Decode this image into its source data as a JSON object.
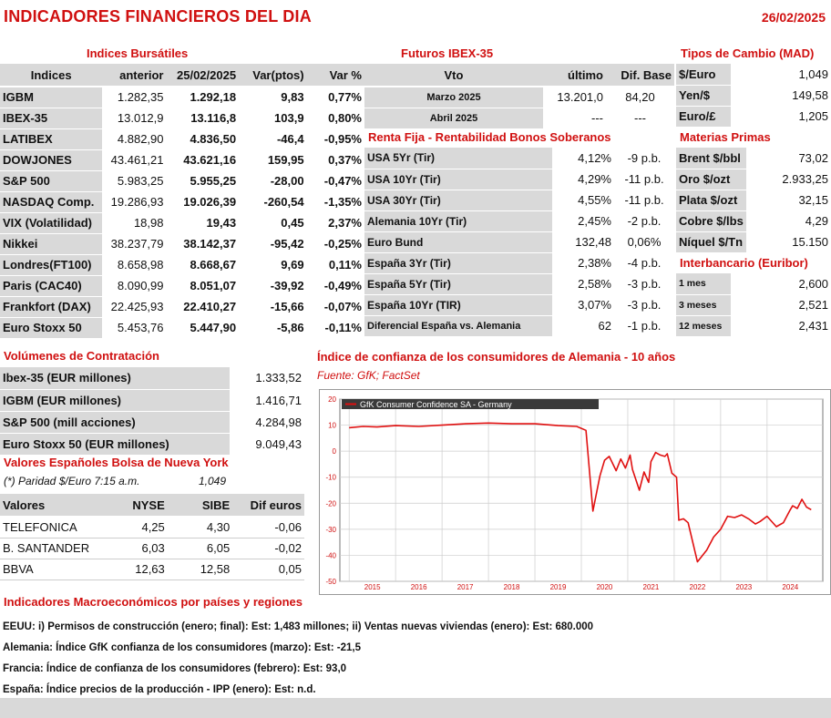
{
  "header": {
    "title": "INDICADORES FINANCIEROS DEL DIA",
    "date": "26/02/2025"
  },
  "indices": {
    "section_title": "Indices Bursátiles",
    "headers": [
      "Indices",
      "anterior",
      "25/02/2025",
      "Var(ptos)",
      "Var %"
    ],
    "rows": [
      [
        "IGBM",
        "1.282,35",
        "1.292,18",
        "9,83",
        "0,77%"
      ],
      [
        "IBEX-35",
        "13.012,9",
        "13.116,8",
        "103,9",
        "0,80%"
      ],
      [
        "LATIBEX",
        "4.882,90",
        "4.836,50",
        "-46,4",
        "-0,95%"
      ],
      [
        "DOWJONES",
        "43.461,21",
        "43.621,16",
        "159,95",
        "0,37%"
      ],
      [
        "S&P 500",
        "5.983,25",
        "5.955,25",
        "-28,00",
        "-0,47%"
      ],
      [
        "NASDAQ Comp.",
        "19.286,93",
        "19.026,39",
        "-260,54",
        "-1,35%"
      ],
      [
        "VIX (Volatilidad)",
        "18,98",
        "19,43",
        "0,45",
        "2,37%"
      ],
      [
        "Nikkei",
        "38.237,79",
        "38.142,37",
        "-95,42",
        "-0,25%"
      ],
      [
        "Londres(FT100)",
        "8.658,98",
        "8.668,67",
        "9,69",
        "0,11%"
      ],
      [
        "Paris (CAC40)",
        "8.090,99",
        "8.051,07",
        "-39,92",
        "-0,49%"
      ],
      [
        "Frankfort (DAX)",
        "22.425,93",
        "22.410,27",
        "-15,66",
        "-0,07%"
      ],
      [
        "Euro Stoxx 50",
        "5.453,76",
        "5.447,90",
        "-5,86",
        "-0,11%"
      ]
    ]
  },
  "futuros": {
    "section_title": "Futuros  IBEX-35",
    "headers": [
      "Vto",
      "último",
      "Dif. Base"
    ],
    "rows": [
      [
        "Marzo 2025",
        "13.201,0",
        "84,20"
      ],
      [
        "Abril 2025",
        "---",
        "---"
      ]
    ]
  },
  "renta_fija": {
    "section_title": "Renta Fija - Rentabilidad Bonos Soberanos",
    "rows": [
      [
        "USA 5Yr (Tir)",
        "4,12%",
        "-9 p.b."
      ],
      [
        "USA 10Yr (Tir)",
        "4,29%",
        "-11 p.b."
      ],
      [
        "USA 30Yr (Tir)",
        "4,55%",
        "-11 p.b."
      ],
      [
        "Alemania 10Yr (Tir)",
        "2,45%",
        "-2 p.b."
      ],
      [
        "Euro Bund",
        "132,48",
        "0,06%"
      ],
      [
        "España 3Yr (Tir)",
        "2,38%",
        "-4 p.b."
      ],
      [
        "España 5Yr (Tir)",
        "2,58%",
        "-3 p.b."
      ],
      [
        "España 10Yr (TIR)",
        "3,07%",
        "-3 p.b."
      ],
      [
        "Diferencial España vs. Alemania",
        "62",
        "-1 p.b."
      ]
    ]
  },
  "tipos_cambio": {
    "section_title": "Tipos de Cambio (MAD)",
    "rows": [
      [
        "$/Euro",
        "1,049"
      ],
      [
        "Yen/$",
        "149,58"
      ],
      [
        "Euro/£",
        "1,205"
      ]
    ]
  },
  "materias_primas": {
    "section_title": "Materias Primas",
    "rows": [
      [
        "Brent $/bbl",
        "73,02"
      ],
      [
        "Oro $/ozt",
        "2.933,25"
      ],
      [
        "Plata $/ozt",
        "32,15"
      ],
      [
        "Cobre $/lbs",
        "4,29"
      ],
      [
        "Níquel $/Tn",
        "15.150"
      ]
    ]
  },
  "interbancario": {
    "section_title": "Interbancario (Euribor)",
    "rows": [
      [
        "1 mes",
        "2,600"
      ],
      [
        "3 meses",
        "2,521"
      ],
      [
        "12 meses",
        "2,431"
      ]
    ]
  },
  "volumenes": {
    "section_title": "Volúmenes de Contratación",
    "rows": [
      [
        "Ibex-35 (EUR millones)",
        "1.333,52"
      ],
      [
        "IGBM (EUR millones)",
        "1.416,71"
      ],
      [
        "S&P 500 (mill acciones)",
        "4.284,98"
      ],
      [
        "Euro Stoxx 50 (EUR millones)",
        "9.049,43"
      ]
    ]
  },
  "nueva_york": {
    "section_title": "Valores Españoles Bolsa de Nueva York",
    "paridad_label": "(*) Paridad $/Euro 7:15 a.m.",
    "paridad_value": "1,049",
    "headers": [
      "Valores",
      "NYSE",
      "SIBE",
      "Dif euros"
    ],
    "rows": [
      [
        "TELEFONICA",
        "4,25",
        "4,30",
        "-0,06"
      ],
      [
        "B. SANTANDER",
        "6,03",
        "6,05",
        "-0,02"
      ],
      [
        "BBVA",
        "12,63",
        "12,58",
        "0,05"
      ]
    ]
  },
  "chart_section": {
    "title": "Índice de confianza de los consumidores de Alemania - 10 años",
    "source": "Fuente: GfK; FactSet"
  },
  "chart_data": {
    "type": "line",
    "title": "GfK Consumer Confidence SA - Germany",
    "xlabel": "",
    "ylabel": "",
    "ylim": [
      -50,
      20
    ],
    "yticks": [
      20,
      10,
      0,
      -10,
      -20,
      -30,
      -40,
      -50
    ],
    "xlim": [
      2014.8,
      2025.2
    ],
    "xticks": [
      "2015",
      "2016",
      "2017",
      "2018",
      "2019",
      "2020",
      "2021",
      "2022",
      "2023",
      "2024"
    ],
    "grid": true,
    "series": [
      {
        "color": "#e01010",
        "x": [
          2015.0,
          2015.3,
          2015.6,
          2016.0,
          2016.5,
          2017.0,
          2017.5,
          2018.0,
          2018.5,
          2019.0,
          2019.5,
          2019.9,
          2020.1,
          2020.25,
          2020.4,
          2020.5,
          2020.6,
          2020.75,
          2020.85,
          2020.95,
          2021.05,
          2021.1,
          2021.25,
          2021.35,
          2021.45,
          2021.5,
          2021.6,
          2021.7,
          2021.8,
          2021.85,
          2021.95,
          2022.05,
          2022.1,
          2022.2,
          2022.3,
          2022.5,
          2022.7,
          2022.85,
          2023.0,
          2023.15,
          2023.3,
          2023.45,
          2023.6,
          2023.75,
          2023.85,
          2024.0,
          2024.2,
          2024.35,
          2024.5,
          2024.55,
          2024.65,
          2024.75,
          2024.85,
          2024.95
        ],
        "y": [
          9.0,
          9.5,
          9.3,
          9.8,
          9.5,
          10.0,
          10.5,
          10.8,
          10.5,
          10.5,
          9.8,
          9.5,
          8.0,
          -23.0,
          -9.5,
          -3.5,
          -2.0,
          -7.5,
          -3.0,
          -6.5,
          -1.5,
          -7.0,
          -15.0,
          -8.0,
          -12.0,
          -4.0,
          -0.5,
          -1.5,
          -2.0,
          -1.0,
          -8.5,
          -10.0,
          -26.5,
          -26.0,
          -27.5,
          -42.5,
          -38.0,
          -33.0,
          -30.0,
          -25.0,
          -25.5,
          -24.5,
          -26.0,
          -28.0,
          -27.0,
          -25.0,
          -29.0,
          -27.5,
          -22.5,
          -21.0,
          -22.0,
          -18.5,
          -21.5,
          -22.5
        ]
      }
    ]
  },
  "macro": {
    "section_title": "Indicadores Macroeconómicos por países y regiones",
    "lines": [
      "EEUU: i) Permisos de construcción (enero; final): Est: 1,483 millones; ii) Ventas nuevas viviendas (enero): Est: 680.000",
      "Alemania: Índice GfK confianza de los consumidores (marzo): Est: -21,5",
      "Francia: Índice de confianza de los consumidores (febrero): Est: 93,0",
      "España: Índice precios de la producción - IPP (enero): Est: n.d."
    ]
  }
}
